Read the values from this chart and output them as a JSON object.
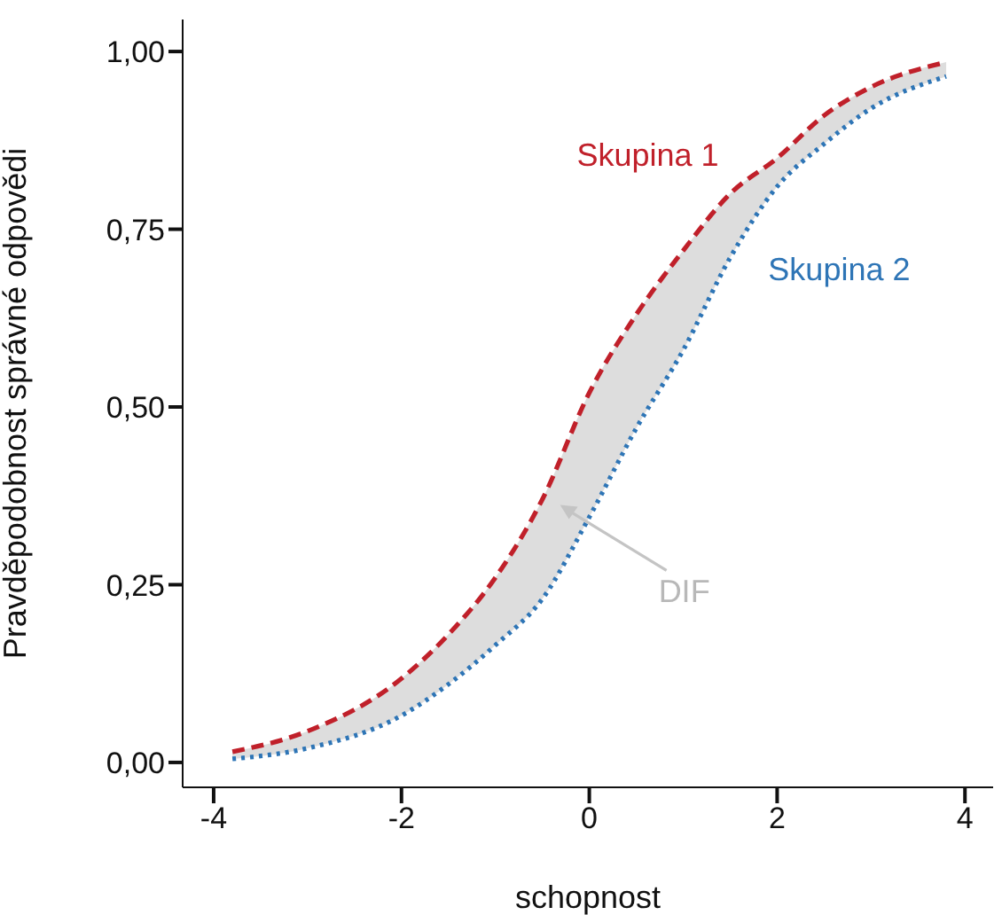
{
  "chart_data": {
    "type": "line",
    "xlabel": "schopnost",
    "ylabel": "Pravděpodobnost správné odpovědi",
    "x": [
      -3.8,
      -3,
      -2,
      -1.5,
      -1,
      -0.5,
      0,
      0.5,
      1,
      1.5,
      2,
      2.5,
      3,
      3.8
    ],
    "series": [
      {
        "name": "Skupina 1",
        "color": "#c0202a",
        "line_style": "dashed",
        "values": [
          0.015,
          0.044,
          0.118,
          0.18,
          0.26,
          0.37,
          0.52,
          0.63,
          0.72,
          0.8,
          0.85,
          0.91,
          0.95,
          0.985
        ]
      },
      {
        "name": "Skupina 2",
        "color": "#2e75b6",
        "line_style": "dotted",
        "values": [
          0.005,
          0.02,
          0.066,
          0.11,
          0.165,
          0.23,
          0.345,
          0.47,
          0.58,
          0.71,
          0.81,
          0.87,
          0.92,
          0.965
        ],
        "lower": [
          0.005,
          0.02,
          0.066,
          0.11,
          0.165,
          0.23,
          0.345,
          0.47,
          0.58,
          0.71,
          0.81,
          0.87,
          0.92,
          0.965
        ],
        "upper": [
          0.015,
          0.044,
          0.118,
          0.18,
          0.26,
          0.37,
          0.52,
          0.63,
          0.72,
          0.8,
          0.85,
          0.91,
          0.95,
          0.985
        ]
      }
    ],
    "xlim": [
      -4.33,
      4.3
    ],
    "xticks": [
      -4,
      -2,
      0,
      2,
      4
    ],
    "ylim": [
      -0.035,
      1.045
    ],
    "yticks": [
      {
        "value": 0,
        "label": "0,00"
      },
      {
        "value": 0.25,
        "label": "0,25"
      },
      {
        "value": 0.5,
        "label": "0,50"
      },
      {
        "value": 0.75,
        "label": "0,75"
      },
      {
        "value": 1,
        "label": "1,00"
      }
    ],
    "annotations": [
      "DIF"
    ],
    "grid": false,
    "legend": false,
    "marker": "none"
  }
}
